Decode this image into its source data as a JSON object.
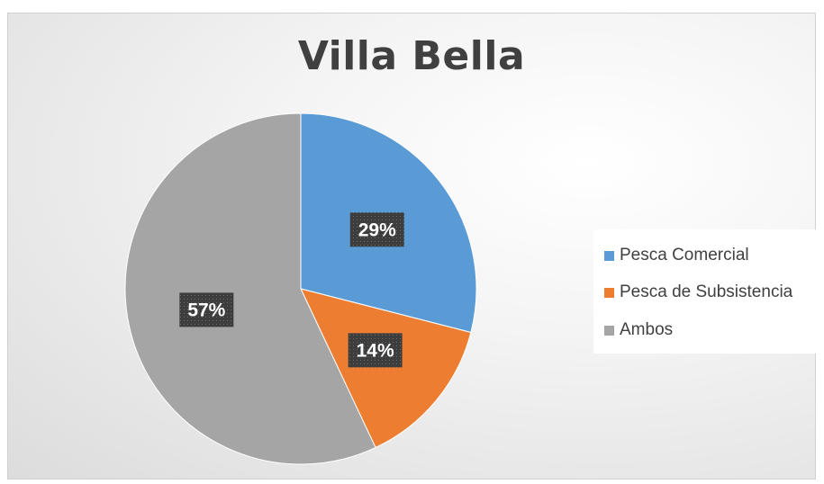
{
  "chart_data": {
    "type": "pie",
    "title": "Villa Bella",
    "categories": [
      "Pesca Comercial",
      "Pesca de Subsistencia",
      "Ambos"
    ],
    "values": [
      29,
      14,
      57
    ],
    "data_labels": [
      "29%",
      "14%",
      "57%"
    ],
    "colors": [
      "#5B9BD5",
      "#ED7D31",
      "#A5A5A5"
    ],
    "legend_position": "right"
  }
}
